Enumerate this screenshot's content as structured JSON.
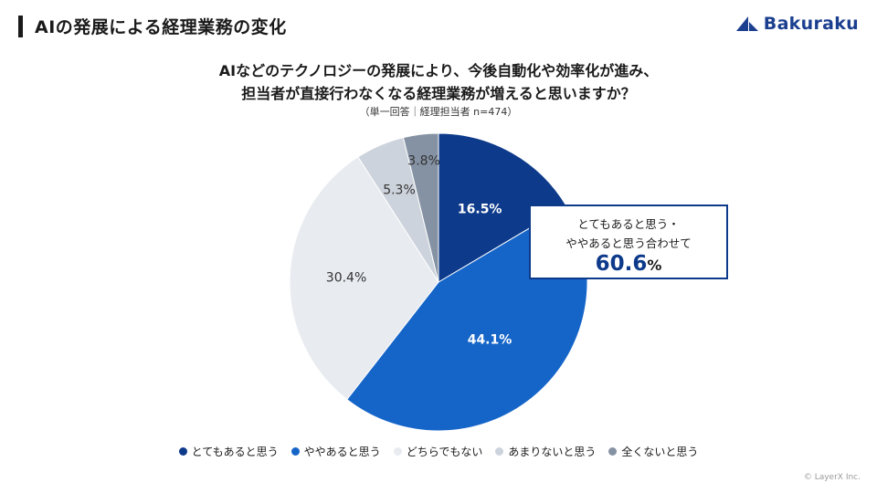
{
  "header": {
    "title": "AIの発展による経理業務の変化",
    "logo_text": "Bakuraku"
  },
  "colors": {
    "very_agree": "#0d3a8a",
    "somewhat_agree": "#1565c8",
    "neutral": "#e8ebf0",
    "somewhat_disagree": "#cdd3dc",
    "disagree": "#8592a4",
    "accent": "#0d3a8a"
  },
  "chart_data": {
    "type": "pie",
    "title_line1": "AIなどのテクノロジーの発展により、今後自動化や効率化が進み、",
    "title_line2": "担当者が直接行わなくなる経理業務が増えると思いますか？",
    "subtitle": "（単一回答｜経理担当者 n=474）",
    "categories": [
      "とてもあると思う",
      "ややあると思う",
      "どちらでもない",
      "あまりないと思う",
      "全くないと思う"
    ],
    "values": [
      16.5,
      44.1,
      30.4,
      5.3,
      3.8
    ],
    "labels": [
      "16.5%",
      "44.1%",
      "30.4%",
      "5.3%",
      "3.8%"
    ],
    "legend_position": "bottom",
    "annotation": {
      "line1": "とてもあると思う・",
      "line2": "ややあると思う合わせて",
      "value": "60.6",
      "unit": "%"
    }
  },
  "footer": {
    "copyright": "© LayerX Inc."
  }
}
